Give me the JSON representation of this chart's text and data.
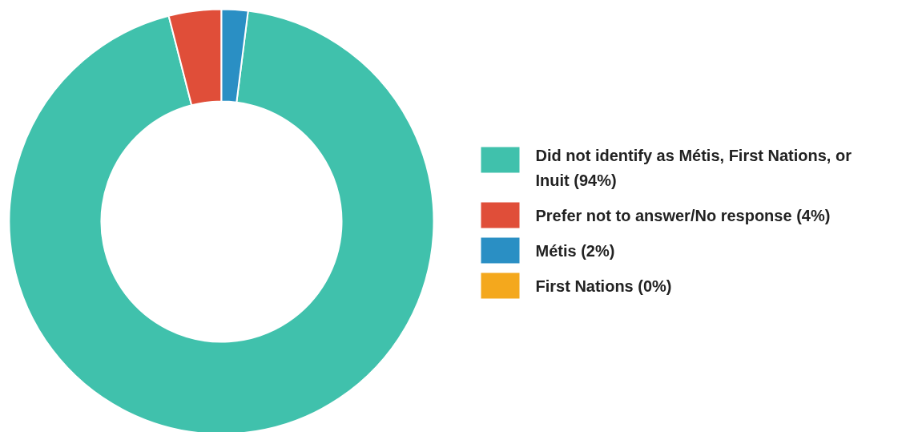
{
  "chart_data": {
    "type": "donut",
    "categories": [
      "Did not identify as Métis, First Nations, or Inuit (94%)",
      "Prefer not to answer/No response (4%)",
      "Métis (2%)",
      "First Nations (0%)"
    ],
    "values": [
      94,
      4,
      2,
      0
    ],
    "colors": [
      "#40c1ac",
      "#e04e39",
      "#2a8fc4",
      "#f4a81d"
    ],
    "legend": "right"
  }
}
